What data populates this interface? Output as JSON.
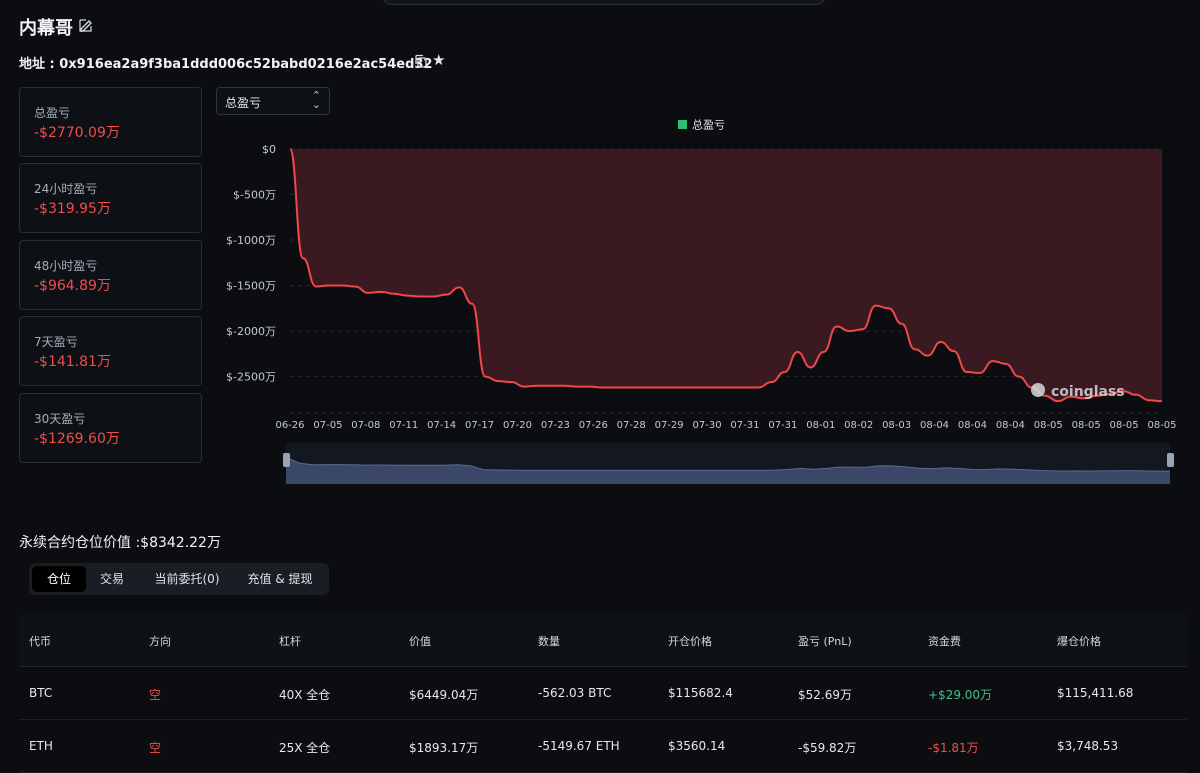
{
  "header": {
    "title": "内幕哥",
    "address": "地址 : 0x916ea2a9f3ba1ddd006c52babd0216e2ac54ed32"
  },
  "stats": [
    {
      "label": "总盈亏",
      "value": "-$2770.09万"
    },
    {
      "label": "24小时盈亏",
      "value": "-$319.95万"
    },
    {
      "label": "48小时盈亏",
      "value": "-$964.89万"
    },
    {
      "label": "7天盈亏",
      "value": "-$141.81万"
    },
    {
      "label": "30天盈亏",
      "value": "-$1269.60万"
    }
  ],
  "selector": {
    "value": "总盈亏"
  },
  "colors": {
    "line": "#f0474a",
    "area": "#3a1a20",
    "legend": "#2fbf71",
    "negative": "#f04d4d",
    "positive": "#3fbf8a"
  },
  "chart_data": {
    "type": "area",
    "title": "",
    "xlabel": "",
    "ylabel": "",
    "ylim": [
      -2900,
      0
    ],
    "grid": true,
    "legend_position": "top-center",
    "yticks": [
      "$0",
      "$-500万",
      "$-1000万",
      "$-1500万",
      "$-2000万",
      "$-2500万"
    ],
    "ytick_values": [
      0,
      -500,
      -1000,
      -1500,
      -2000,
      -2500
    ],
    "xticks": [
      "06-26",
      "07-05",
      "07-08",
      "07-11",
      "07-14",
      "07-17",
      "07-20",
      "07-23",
      "07-26",
      "07-28",
      "07-29",
      "07-30",
      "07-31",
      "07-31",
      "08-01",
      "08-02",
      "08-03",
      "08-04",
      "08-04",
      "08-04",
      "08-05",
      "08-05",
      "08-05",
      "08-05"
    ],
    "watermark": "coinglass",
    "series": [
      {
        "name": "总盈亏",
        "values": [
          0,
          -1200,
          -1510,
          -1500,
          -1500,
          -1510,
          -1580,
          -1570,
          -1590,
          -1610,
          -1620,
          -1620,
          -1600,
          -1520,
          -1700,
          -2500,
          -2550,
          -2560,
          -2610,
          -2600,
          -2600,
          -2600,
          -2610,
          -2610,
          -2620,
          -2620,
          -2620,
          -2620,
          -2620,
          -2620,
          -2620,
          -2620,
          -2620,
          -2620,
          -2620,
          -2620,
          -2620,
          -2560,
          -2450,
          -2230,
          -2400,
          -2230,
          -1950,
          -2000,
          -1980,
          -1720,
          -1750,
          -1920,
          -2200,
          -2270,
          -2120,
          -2220,
          -2450,
          -2460,
          -2330,
          -2360,
          -2500,
          -2620,
          -2710,
          -2770,
          -2720,
          -2740,
          -2710,
          -2690,
          -2660,
          -2700,
          -2760,
          -2770
        ]
      }
    ]
  },
  "section": {
    "title": "永续合约仓位价值 :$8342.22万"
  },
  "tabs": [
    "仓位",
    "交易",
    "当前委托(0)",
    "充值 & 提现"
  ],
  "table": {
    "headers": [
      "代币",
      "方向",
      "杠杆",
      "价值",
      "数量",
      "开仓价格",
      "盈亏 (PnL)",
      "资金费",
      "爆仓价格"
    ],
    "rows": [
      [
        "BTC",
        "空",
        "40X 全仓",
        "$6449.04万",
        "-562.03 BTC",
        "$115682.4",
        "$52.69万",
        "+$29.00万",
        "$115,411.68"
      ],
      [
        "ETH",
        "空",
        "25X 全仓",
        "$1893.17万",
        "-5149.67 ETH",
        "$3560.14",
        "-$59.82万",
        "-$1.81万",
        "$3,748.53"
      ]
    ]
  }
}
